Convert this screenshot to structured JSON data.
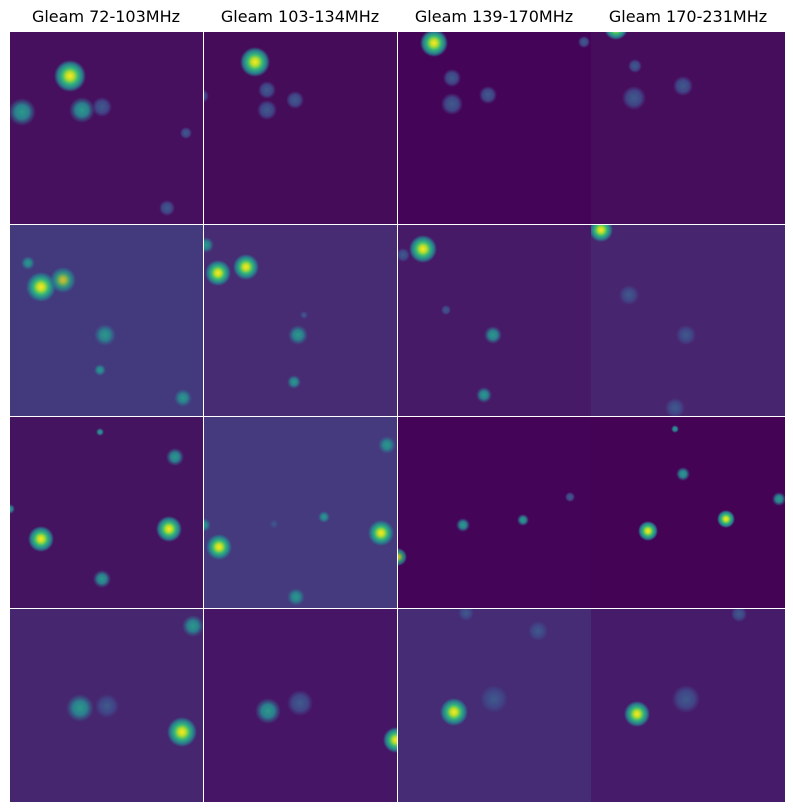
{
  "header": {
    "columns": [
      "Gleam 72-103MHz",
      "Gleam 103-134MHz",
      "Gleam 139-170MHz",
      "Gleam 170-231MHz"
    ]
  }
}
